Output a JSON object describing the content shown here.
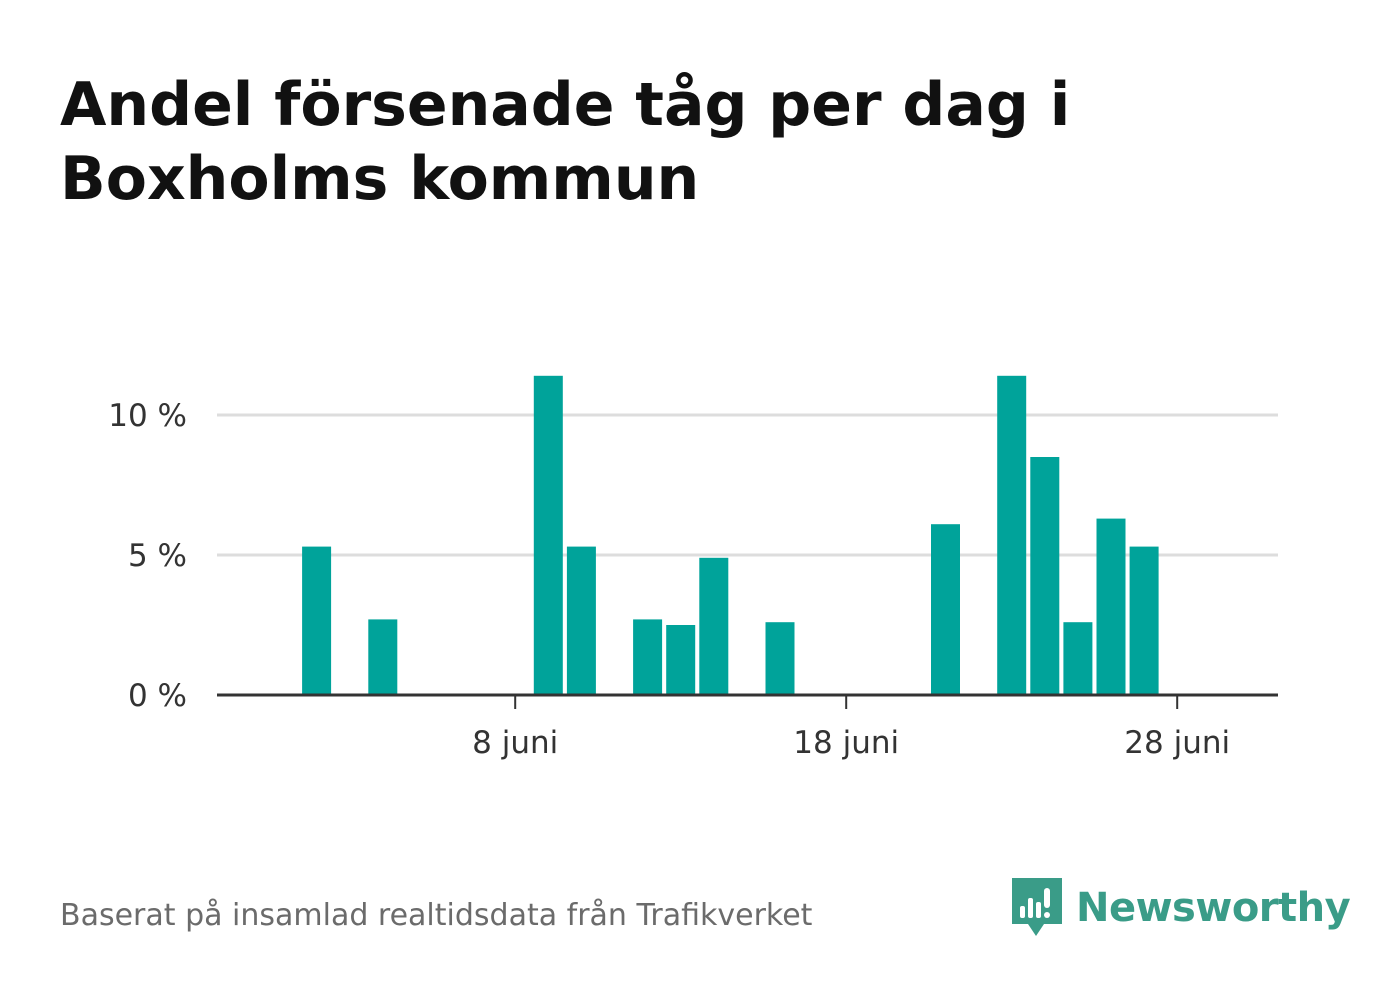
{
  "title": "Andel försenade tåg per dag i Boxholms kommun",
  "source": "Baserat på insamlad realtidsdata från Trafikverket",
  "brand": "Newsworthy",
  "colors": {
    "bar": "#00a39a",
    "grid": "#dddddd",
    "axis": "#333333",
    "title": "#111111",
    "tick_label": "#333333",
    "source": "#6b6b6b",
    "brand": "#3a9c88"
  },
  "chart_data": {
    "type": "bar",
    "title": "Andel försenade tåg per dag i Boxholms kommun",
    "xlabel": "",
    "ylabel": "",
    "x": [
      "1 juni",
      "2 juni",
      "3 juni",
      "4 juni",
      "5 juni",
      "6 juni",
      "7 juni",
      "8 juni",
      "9 juni",
      "10 juni",
      "11 juni",
      "12 juni",
      "13 juni",
      "14 juni",
      "15 juni",
      "16 juni",
      "17 juni",
      "18 juni",
      "19 juni",
      "20 juni",
      "21 juni",
      "22 juni",
      "23 juni",
      "24 juni",
      "25 juni",
      "26 juni",
      "27 juni",
      "28 juni",
      "29 juni",
      "30 juni"
    ],
    "values": [
      0,
      5.3,
      0,
      2.7,
      0,
      0,
      0,
      0,
      11.4,
      5.3,
      0,
      2.7,
      2.5,
      4.9,
      0,
      2.6,
      0,
      0,
      0,
      0,
      6.1,
      0,
      11.4,
      8.5,
      2.6,
      6.3,
      5.3,
      0,
      0,
      0
    ],
    "y_unit": "%",
    "ylim": [
      0,
      12.5
    ],
    "yticks": [
      {
        "value": 0,
        "label": "0 %"
      },
      {
        "value": 5,
        "label": "5 %"
      },
      {
        "value": 10,
        "label": "10 %"
      }
    ],
    "xticks": [
      {
        "index": 7,
        "label": "8 juni"
      },
      {
        "index": 17,
        "label": "18 juni"
      },
      {
        "index": 27,
        "label": "28 juni"
      }
    ],
    "grid": "horizontal"
  }
}
